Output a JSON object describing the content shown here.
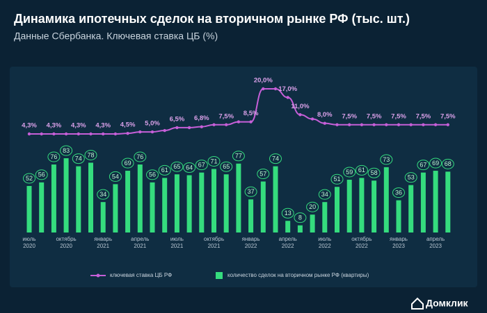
{
  "chart_data": {
    "type": "bar",
    "title": "Динамика ипотечных сделок на вторичном рынке РФ (тыс. шт.)",
    "subtitle": "Данные Сбербанка. Ключевая ставка ЦБ (%)",
    "categories": [
      "июль 2020",
      null,
      null,
      "октябрь 2020",
      null,
      null,
      "январь 2021",
      null,
      null,
      "апрель 2021",
      null,
      null,
      "июль 2021",
      null,
      null,
      "октябрь 2021",
      null,
      null,
      "январь 2022",
      null,
      null,
      "апрель 2022",
      null,
      null,
      "июль 2022",
      null,
      null,
      "октябрь 2022",
      null,
      null,
      "январь 2023",
      null,
      null,
      "апрель 2023",
      null
    ],
    "series": [
      {
        "name": "количество сделок на вторичном рынке РФ (квартиры)",
        "type": "bar",
        "color": "#35dc7e",
        "values": [
          52,
          56,
          76,
          83,
          74,
          78,
          34,
          54,
          69,
          76,
          56,
          61,
          65,
          64,
          67,
          71,
          65,
          77,
          37,
          57,
          74,
          13,
          8,
          20,
          34,
          51,
          59,
          61,
          58,
          73,
          36,
          53,
          67,
          69,
          68
        ]
      },
      {
        "name": "ключевая ставка ЦБ РФ",
        "type": "line",
        "color": "#c65fd8",
        "values": [
          4.3,
          4.3,
          4.3,
          4.3,
          4.3,
          4.3,
          4.3,
          4.3,
          4.5,
          5.0,
          5.0,
          5.5,
          6.5,
          6.5,
          6.8,
          7.5,
          7.5,
          8.5,
          8.5,
          20.0,
          20.0,
          17.0,
          11.0,
          9.5,
          8.0,
          7.5,
          7.5,
          7.5,
          7.5,
          7.5,
          7.5,
          7.5,
          7.5,
          7.5,
          7.5
        ],
        "value_labels": [
          "4,3%",
          null,
          "4,3%",
          null,
          "4,3%",
          null,
          "4,3%",
          null,
          "4,5%",
          null,
          "5,0%",
          null,
          "6,5%",
          null,
          "6,8%",
          null,
          "7,5%",
          null,
          "8,5%",
          "20,0%",
          null,
          "17,0%",
          "11,0%",
          null,
          "8,0%",
          null,
          "7,5%",
          null,
          "7,5%",
          null,
          "7,5%",
          null,
          "7,5%",
          null,
          "7,5%"
        ]
      }
    ]
  },
  "logo": "Домклик"
}
